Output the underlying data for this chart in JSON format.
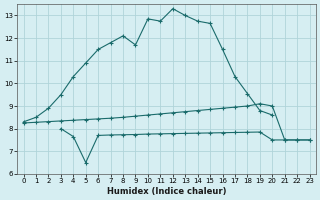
{
  "xlabel": "Humidex (Indice chaleur)",
  "xlim": [
    -0.5,
    23.5
  ],
  "ylim": [
    6,
    13.5
  ],
  "yticks": [
    6,
    7,
    8,
    9,
    10,
    11,
    12,
    13
  ],
  "xticks": [
    0,
    1,
    2,
    3,
    4,
    5,
    6,
    7,
    8,
    9,
    10,
    11,
    12,
    13,
    14,
    15,
    16,
    17,
    18,
    19,
    20,
    21,
    22,
    23
  ],
  "bg_color": "#d6eef2",
  "grid_color": "#b0d4da",
  "line_color": "#1a6b6b",
  "line1_x": [
    0,
    1,
    2,
    3,
    4,
    5,
    6,
    7,
    8,
    9,
    10,
    11,
    12,
    13,
    14,
    15,
    16,
    17,
    18,
    19,
    20
  ],
  "line1_y": [
    8.3,
    8.5,
    8.9,
    9.5,
    10.3,
    10.9,
    11.5,
    11.8,
    12.1,
    11.7,
    12.85,
    12.75,
    13.3,
    13.0,
    12.75,
    12.65,
    11.5,
    10.3,
    9.55,
    8.8,
    8.6
  ],
  "line2_x": [
    0,
    1,
    2,
    3,
    4,
    5,
    6,
    7,
    8,
    9,
    10,
    11,
    12,
    13,
    14,
    15,
    16,
    17,
    18,
    19,
    20,
    21,
    22,
    23
  ],
  "line2_y": [
    8.25,
    8.28,
    8.31,
    8.34,
    8.37,
    8.4,
    8.43,
    8.46,
    8.5,
    8.55,
    8.6,
    8.65,
    8.7,
    8.75,
    8.8,
    8.85,
    8.9,
    8.95,
    9.0,
    9.1,
    9.0,
    7.5,
    7.5,
    7.5
  ],
  "line3_x": [
    3,
    4,
    5,
    6,
    7,
    8,
    9,
    10,
    11,
    12,
    13,
    14,
    15,
    16,
    17,
    18,
    19,
    20,
    21,
    22,
    23
  ],
  "line3_y": [
    8.0,
    7.65,
    6.5,
    7.7,
    7.72,
    7.73,
    7.74,
    7.76,
    7.77,
    7.78,
    7.79,
    7.8,
    7.81,
    7.82,
    7.83,
    7.84,
    7.85,
    7.5,
    7.5,
    7.5,
    7.5
  ]
}
